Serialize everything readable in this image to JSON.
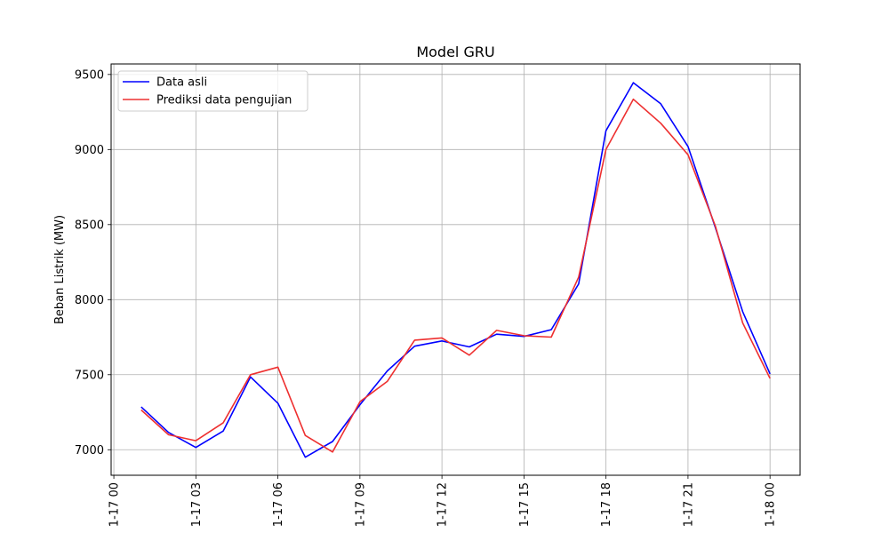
{
  "chart_data": {
    "type": "line",
    "title": "Model GRU",
    "xlabel": "",
    "ylabel": "Beban Listrik (MW)",
    "x_tick_labels": [
      "1-17 00",
      "1-17 03",
      "1-17 06",
      "1-17 09",
      "1-17 12",
      "1-17 15",
      "1-17 18",
      "1-17 21",
      "1-18 00"
    ],
    "x_tick_hours": [
      0,
      3,
      6,
      9,
      12,
      15,
      18,
      21,
      24
    ],
    "y_ticks": [
      7000,
      7500,
      8000,
      8500,
      9000,
      9500
    ],
    "xlim": [
      -0.1,
      25.1
    ],
    "ylim": [
      6830,
      9570
    ],
    "grid": true,
    "legend_position": "top-left",
    "x": [
      1,
      2,
      3,
      4,
      5,
      6,
      7,
      8,
      9,
      10,
      11,
      12,
      13,
      14,
      15,
      16,
      17,
      18,
      19,
      20,
      21,
      22,
      23,
      24
    ],
    "series": [
      {
        "name": "Data asli",
        "color": "#0000ff",
        "values": [
          7285,
          7115,
          7015,
          7125,
          7485,
          7310,
          6950,
          7055,
          7300,
          7525,
          7690,
          7725,
          7685,
          7770,
          7755,
          7800,
          8105,
          9125,
          9445,
          9305,
          9020,
          8480,
          7920,
          7505
        ]
      },
      {
        "name": "Prediksi data pengujian",
        "color": "#ee3030",
        "values": [
          7265,
          7100,
          7060,
          7180,
          7500,
          7550,
          7095,
          6985,
          7320,
          7455,
          7730,
          7745,
          7630,
          7795,
          7760,
          7750,
          8150,
          9000,
          9335,
          9175,
          8965,
          8490,
          7845,
          7475
        ]
      }
    ]
  }
}
